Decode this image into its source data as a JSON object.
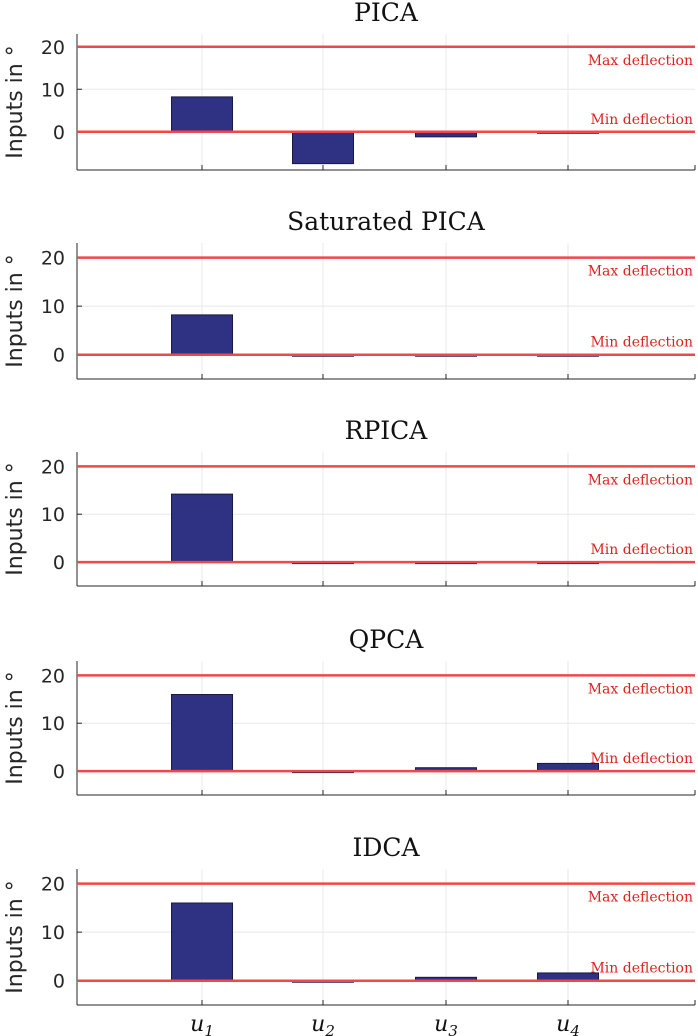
{
  "colors": {
    "bar_fill": "#2f3183",
    "bar_stroke": "#1a1a40",
    "limit_line": "#f0474a",
    "limit_text": "#e0201e",
    "grid": "#e8e8e8",
    "axis": "#262626"
  },
  "x_tick_labels": [
    {
      "base": "u",
      "sub": "1"
    },
    {
      "base": "u",
      "sub": "2"
    },
    {
      "base": "u",
      "sub": "3"
    },
    {
      "base": "u",
      "sub": "4"
    }
  ],
  "chart_data": [
    {
      "type": "bar",
      "title": "PICA",
      "ylabel": "Inputs in °",
      "categories": [
        "u1",
        "u2",
        "u3",
        "u4"
      ],
      "values": [
        8.2,
        -7.5,
        -1.2,
        -0.3
      ],
      "ylim": [
        -9,
        23
      ],
      "yticks": [
        0,
        10,
        20
      ],
      "limits": [
        {
          "label": "Max deflection",
          "value": 20
        },
        {
          "label": "Min deflection",
          "value": 0
        }
      ]
    },
    {
      "type": "bar",
      "title": "Saturated PICA",
      "ylabel": "Inputs in °",
      "categories": [
        "u1",
        "u2",
        "u3",
        "u4"
      ],
      "values": [
        8.2,
        0,
        0,
        0
      ],
      "ylim": [
        -5,
        23
      ],
      "yticks": [
        0,
        10,
        20
      ],
      "limits": [
        {
          "label": "Max deflection",
          "value": 20
        },
        {
          "label": "Min deflection",
          "value": 0
        }
      ]
    },
    {
      "type": "bar",
      "title": "RPICA",
      "ylabel": "Inputs in °",
      "categories": [
        "u1",
        "u2",
        "u3",
        "u4"
      ],
      "values": [
        14.2,
        0,
        0,
        0
      ],
      "ylim": [
        -5,
        23
      ],
      "yticks": [
        0,
        10,
        20
      ],
      "limits": [
        {
          "label": "Max deflection",
          "value": 20
        },
        {
          "label": "Min deflection",
          "value": 0
        }
      ]
    },
    {
      "type": "bar",
      "title": "QPCA",
      "ylabel": "Inputs in °",
      "categories": [
        "u1",
        "u2",
        "u3",
        "u4"
      ],
      "values": [
        16.0,
        0,
        0.7,
        1.6
      ],
      "ylim": [
        -5,
        23
      ],
      "yticks": [
        0,
        10,
        20
      ],
      "limits": [
        {
          "label": "Max deflection",
          "value": 20
        },
        {
          "label": "Min deflection",
          "value": 0
        }
      ]
    },
    {
      "type": "bar",
      "title": "IDCA",
      "ylabel": "Inputs in °",
      "categories": [
        "u1",
        "u2",
        "u3",
        "u4"
      ],
      "values": [
        16.0,
        0,
        0.7,
        1.6
      ],
      "ylim": [
        -5,
        23
      ],
      "yticks": [
        0,
        10,
        20
      ],
      "limits": [
        {
          "label": "Max deflection",
          "value": 20
        },
        {
          "label": "Min deflection",
          "value": 0
        }
      ]
    }
  ]
}
